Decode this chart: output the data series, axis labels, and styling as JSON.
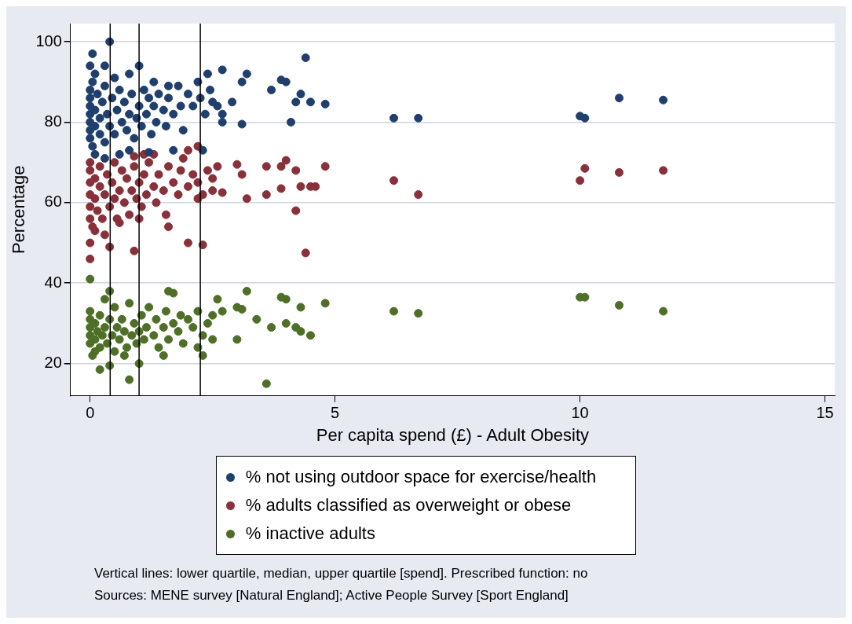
{
  "chart_data": {
    "type": "scatter",
    "xlabel": "Per capita spend (£) - Adult Obesity",
    "ylabel": "Percentage",
    "xlim": [
      -0.4,
      15.2
    ],
    "ylim": [
      12,
      104.5
    ],
    "xticks": [
      0,
      5,
      10,
      15
    ],
    "yticks": [
      20,
      40,
      60,
      80,
      100
    ],
    "grid": "y",
    "legend": "bottom",
    "marker": "circle",
    "ref_lines": [
      {
        "axis": "x",
        "value": 0.41,
        "color": "#000000"
      },
      {
        "axis": "x",
        "value": 1.0,
        "color": "#000000"
      },
      {
        "axis": "x",
        "value": 2.25,
        "color": "#000000"
      }
    ],
    "annotations": [
      "Vertical lines: lower quartile, median, upper quartile [spend]. Prescribed function: no",
      "Sources: MENE survey [Natural England]; Active People Survey [Sport England]"
    ],
    "series": [
      {
        "name": "% not using outdoor space for exercise/health",
        "color": "#1f3f6e",
        "x": [
          0.4,
          0.05,
          0,
          0.3,
          1.0,
          4.4,
          2.7,
          2.4,
          3.2,
          3.1,
          3.9,
          4.0,
          3.7,
          4.3,
          4.2,
          4.5,
          4.8,
          4.1,
          3.1,
          2.7,
          6.2,
          6.7,
          10.0,
          10.1,
          10.8,
          11.7,
          2.3,
          0.8,
          0.1,
          0.3,
          1.7,
          0,
          0,
          0,
          0,
          0,
          0,
          0,
          0.05,
          0.05,
          0.1,
          0.1,
          0.1,
          0.15,
          0.2,
          0.2,
          0.25,
          0.3,
          0.3,
          0.35,
          0.4,
          0.45,
          0.5,
          0.5,
          0.55,
          0.6,
          0.65,
          0.7,
          0.75,
          0.8,
          0.85,
          0.9,
          0.95,
          1.0,
          1.05,
          1.1,
          1.15,
          1.2,
          1.25,
          1.3,
          1.35,
          1.4,
          1.5,
          1.55,
          1.6,
          1.7,
          1.8,
          1.85,
          1.9,
          2.0,
          2.1,
          2.2,
          2.25,
          2.35,
          2.45,
          2.5,
          2.6,
          2.7,
          1.3,
          0.8,
          1.6,
          0.6,
          1.2,
          2.9
        ],
        "values": [
          100,
          97,
          94,
          94,
          94,
          96,
          93,
          92,
          92,
          90,
          90.5,
          90,
          88,
          87,
          85,
          85,
          84.5,
          80,
          79.5,
          80,
          81,
          81,
          81.5,
          81,
          86,
          85.5,
          73,
          73,
          72,
          71,
          73,
          88,
          86,
          84,
          82,
          80,
          78,
          76,
          90,
          74,
          92,
          83,
          79,
          87,
          81,
          77,
          85,
          89,
          75,
          82,
          79,
          86,
          91,
          77,
          83,
          88,
          80,
          85,
          78,
          82,
          87,
          76,
          81,
          84,
          79,
          88,
          82,
          86,
          77,
          84,
          80,
          87,
          83,
          79,
          86,
          82,
          89,
          84,
          78,
          87,
          84,
          90,
          86,
          82,
          88,
          85,
          84,
          82,
          90,
          92,
          89,
          72,
          72.5,
          85
        ]
      },
      {
        "name": "% adults classified as overweight or obese",
        "color": "#8b2f38",
        "x": [
          0,
          0,
          0.1,
          0.4,
          0.9,
          1.6,
          2.0,
          2.3,
          4.4,
          4.2,
          3.2,
          3.6,
          3.9,
          4.3,
          4.5,
          4.6,
          4.0,
          3.9,
          3.6,
          4.8,
          4.2,
          3.0,
          3.1,
          2.6,
          2.5,
          2.3,
          2.2,
          2.2,
          2.0,
          1.1,
          0.9,
          6.2,
          6.7,
          10.0,
          10.1,
          10.8,
          11.7,
          0,
          0,
          0,
          0,
          0,
          0,
          0.05,
          0.1,
          0.1,
          0.15,
          0.2,
          0.2,
          0.25,
          0.3,
          0.35,
          0.4,
          0.45,
          0.5,
          0.5,
          0.55,
          0.6,
          0.65,
          0.7,
          0.75,
          0.8,
          0.85,
          0.9,
          0.95,
          1.0,
          1.05,
          1.1,
          1.15,
          1.2,
          1.3,
          1.35,
          1.4,
          1.5,
          1.55,
          1.6,
          1.7,
          1.8,
          1.85,
          1.9,
          2.0,
          2.1,
          2.2,
          2.4,
          2.5,
          2.7,
          1.3,
          0.3,
          0.6,
          1.0
        ],
        "values": [
          46,
          50,
          53,
          49,
          48,
          54,
          50,
          49.5,
          47.5,
          58,
          61,
          62,
          63.5,
          64,
          64,
          64,
          70.5,
          69,
          69,
          69,
          68,
          69.5,
          67,
          69,
          66,
          62,
          61,
          74,
          73,
          72,
          71.5,
          65.5,
          62,
          65.5,
          68.5,
          67.5,
          68,
          56,
          59,
          62,
          65,
          68,
          70,
          54,
          61,
          66,
          58,
          64,
          69,
          56,
          62,
          67,
          59,
          65,
          61,
          70,
          56,
          63,
          68,
          60,
          66,
          57,
          63,
          69,
          61,
          65,
          59,
          67,
          62,
          70,
          64,
          60,
          67,
          63,
          57,
          69,
          65,
          62,
          68,
          71,
          64,
          67,
          65,
          68,
          63,
          62.5,
          72,
          52,
          55,
          56
        ]
      },
      {
        "name": "% inactive adults",
        "color": "#4e7026",
        "x": [
          0,
          3.6,
          0.4,
          1.0,
          0.8,
          2.3,
          2.2,
          0.2,
          0.1,
          0.4,
          1.6,
          3.2,
          3.9,
          4.0,
          4.8,
          4.3,
          3.0,
          3.1,
          2.6,
          2.7,
          3.4,
          3.7,
          4.0,
          4.2,
          4.3,
          4.5,
          3.0,
          2.5,
          6.2,
          6.7,
          10.0,
          10.1,
          10.8,
          11.7,
          0,
          0,
          0,
          0,
          0,
          0.05,
          0.1,
          0.1,
          0.15,
          0.2,
          0.2,
          0.25,
          0.3,
          0.35,
          0.4,
          0.45,
          0.5,
          0.5,
          0.55,
          0.6,
          0.65,
          0.7,
          0.75,
          0.8,
          0.85,
          0.9,
          0.95,
          1.0,
          1.05,
          1.1,
          1.15,
          1.2,
          1.3,
          1.35,
          1.4,
          1.5,
          1.55,
          1.6,
          1.7,
          1.8,
          1.85,
          1.9,
          2.0,
          2.1,
          2.2,
          2.3,
          2.4,
          2.5,
          1.7,
          0.3,
          0.7,
          1.5
        ],
        "values": [
          41,
          15,
          19.5,
          20,
          16,
          22,
          24,
          18.5,
          23,
          38,
          38,
          38,
          36.5,
          36,
          35,
          34,
          34,
          33.5,
          36,
          33,
          31,
          29,
          30,
          29,
          28,
          27,
          26,
          26,
          33,
          32.5,
          36.5,
          36.5,
          34.5,
          33,
          25,
          27,
          29,
          31,
          33,
          22,
          26,
          30,
          28,
          24,
          32,
          27,
          29,
          25,
          31,
          27,
          23,
          34,
          29,
          26,
          31,
          28,
          24,
          35,
          27,
          30,
          25,
          28,
          32,
          26,
          29,
          34,
          27,
          31,
          24,
          29,
          33,
          26,
          30,
          28,
          32,
          25,
          31,
          29,
          33,
          27,
          30,
          32,
          37.5,
          36,
          22,
          22
        ]
      }
    ]
  }
}
